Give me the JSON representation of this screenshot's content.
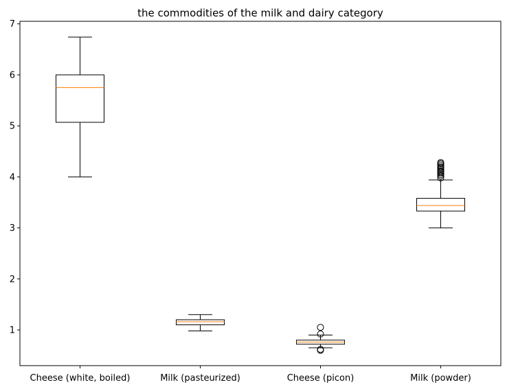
{
  "chart_data": {
    "type": "box",
    "title": "the  commodities of the milk and dairy category",
    "xlabel": "",
    "ylabel": "",
    "ylim": [
      0.3,
      7.05
    ],
    "yticks": [
      1,
      2,
      3,
      4,
      5,
      6,
      7
    ],
    "grid": false,
    "categories": [
      "Cheese (white, boiled)",
      "Milk (pasteurized)",
      "Cheese (picon)",
      "Milk (powder)"
    ],
    "boxes": [
      {
        "whisker_low": 4.0,
        "q1": 5.07,
        "median": 5.75,
        "q3": 6.0,
        "whisker_high": 6.74,
        "outliers": []
      },
      {
        "whisker_low": 0.98,
        "q1": 1.1,
        "median": 1.16,
        "q3": 1.2,
        "whisker_high": 1.3,
        "outliers": []
      },
      {
        "whisker_low": 0.65,
        "q1": 0.72,
        "median": 0.76,
        "q3": 0.8,
        "whisker_high": 0.9,
        "outliers": [
          0.6,
          0.62,
          0.92,
          1.05
        ]
      },
      {
        "whisker_low": 3.0,
        "q1": 3.33,
        "median": 3.44,
        "q3": 3.58,
        "whisker_high": 3.94,
        "outliers": [
          3.98,
          4.02,
          4.05,
          4.08,
          4.1,
          4.12,
          4.15,
          4.18,
          4.2,
          4.23,
          4.26,
          4.28
        ]
      }
    ],
    "colors": {
      "box": "#000000",
      "median": "#ff7f0e",
      "outlier": "#000000"
    }
  }
}
